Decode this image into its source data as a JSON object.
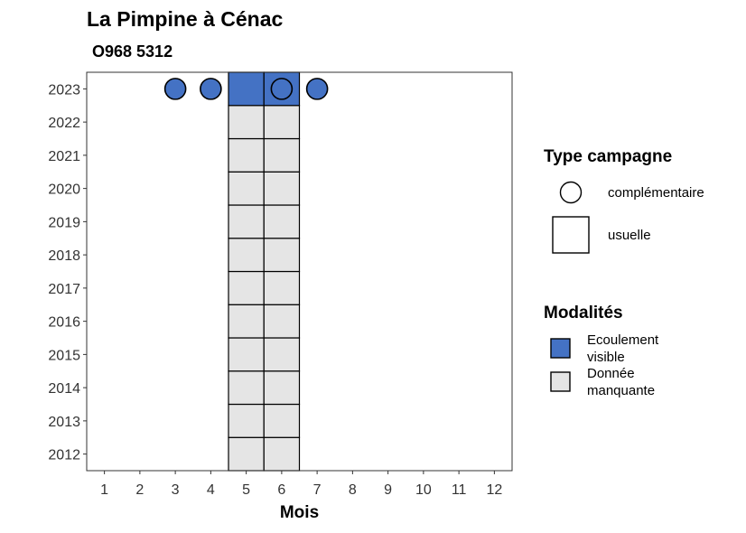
{
  "chart_data": {
    "type": "heatmap",
    "title": "La Pimpine à Cénac",
    "subtitle": "O968 5312",
    "xlabel": "Mois",
    "ylabel": "",
    "x_ticks": [
      "1",
      "2",
      "3",
      "4",
      "5",
      "6",
      "7",
      "8",
      "9",
      "10",
      "11",
      "12"
    ],
    "y_ticks": [
      "2012",
      "2013",
      "2014",
      "2015",
      "2016",
      "2017",
      "2018",
      "2019",
      "2020",
      "2021",
      "2022",
      "2023"
    ],
    "xlim": [
      0.5,
      12.5
    ],
    "ylim": [
      2011.5,
      2023.5
    ],
    "grid": false,
    "legend_position": "right",
    "colors": {
      "ecoulement_visible": "#4472C4",
      "donnee_manquante": "#E5E5E5",
      "outline": "#000000"
    },
    "cells": [
      {
        "year": 2012,
        "month": 5,
        "modalite": "Donnée manquante",
        "campagne": "usuelle"
      },
      {
        "year": 2012,
        "month": 6,
        "modalite": "Donnée manquante",
        "campagne": "usuelle"
      },
      {
        "year": 2013,
        "month": 5,
        "modalite": "Donnée manquante",
        "campagne": "usuelle"
      },
      {
        "year": 2013,
        "month": 6,
        "modalite": "Donnée manquante",
        "campagne": "usuelle"
      },
      {
        "year": 2014,
        "month": 5,
        "modalite": "Donnée manquante",
        "campagne": "usuelle"
      },
      {
        "year": 2014,
        "month": 6,
        "modalite": "Donnée manquante",
        "campagne": "usuelle"
      },
      {
        "year": 2015,
        "month": 5,
        "modalite": "Donnée manquante",
        "campagne": "usuelle"
      },
      {
        "year": 2015,
        "month": 6,
        "modalite": "Donnée manquante",
        "campagne": "usuelle"
      },
      {
        "year": 2016,
        "month": 5,
        "modalite": "Donnée manquante",
        "campagne": "usuelle"
      },
      {
        "year": 2016,
        "month": 6,
        "modalite": "Donnée manquante",
        "campagne": "usuelle"
      },
      {
        "year": 2017,
        "month": 5,
        "modalite": "Donnée manquante",
        "campagne": "usuelle"
      },
      {
        "year": 2017,
        "month": 6,
        "modalite": "Donnée manquante",
        "campagne": "usuelle"
      },
      {
        "year": 2018,
        "month": 5,
        "modalite": "Donnée manquante",
        "campagne": "usuelle"
      },
      {
        "year": 2018,
        "month": 6,
        "modalite": "Donnée manquante",
        "campagne": "usuelle"
      },
      {
        "year": 2019,
        "month": 5,
        "modalite": "Donnée manquante",
        "campagne": "usuelle"
      },
      {
        "year": 2019,
        "month": 6,
        "modalite": "Donnée manquante",
        "campagne": "usuelle"
      },
      {
        "year": 2020,
        "month": 5,
        "modalite": "Donnée manquante",
        "campagne": "usuelle"
      },
      {
        "year": 2020,
        "month": 6,
        "modalite": "Donnée manquante",
        "campagne": "usuelle"
      },
      {
        "year": 2021,
        "month": 5,
        "modalite": "Donnée manquante",
        "campagne": "usuelle"
      },
      {
        "year": 2021,
        "month": 6,
        "modalite": "Donnée manquante",
        "campagne": "usuelle"
      },
      {
        "year": 2022,
        "month": 5,
        "modalite": "Donnée manquante",
        "campagne": "usuelle"
      },
      {
        "year": 2022,
        "month": 6,
        "modalite": "Donnée manquante",
        "campagne": "usuelle"
      },
      {
        "year": 2023,
        "month": 5,
        "modalite": "Ecoulement visible",
        "campagne": "usuelle"
      },
      {
        "year": 2023,
        "month": 6,
        "modalite": "Ecoulement visible",
        "campagne": "usuelle"
      }
    ],
    "points": [
      {
        "year": 2023,
        "month": 3,
        "modalite": "Ecoulement visible",
        "campagne": "complémentaire"
      },
      {
        "year": 2023,
        "month": 4,
        "modalite": "Ecoulement visible",
        "campagne": "complémentaire"
      },
      {
        "year": 2023,
        "month": 6,
        "modalite": "Ecoulement visible",
        "campagne": "complémentaire"
      },
      {
        "year": 2023,
        "month": 7,
        "modalite": "Ecoulement visible",
        "campagne": "complémentaire"
      }
    ],
    "legend_type": {
      "title": "Type campagne",
      "items": [
        {
          "label": "complémentaire",
          "shape": "circle"
        },
        {
          "label": "usuelle",
          "shape": "square"
        }
      ]
    },
    "legend_modalites": {
      "title": "Modalités",
      "items": [
        {
          "label_lines": [
            "Ecoulement",
            "visible"
          ],
          "color_key": "ecoulement_visible"
        },
        {
          "label_lines": [
            "Donnée",
            "manquante"
          ],
          "color_key": "donnee_manquante"
        }
      ]
    }
  }
}
